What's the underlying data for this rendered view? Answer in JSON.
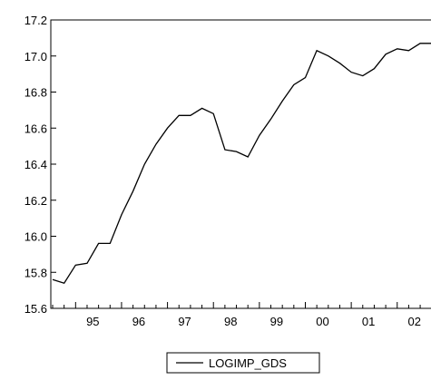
{
  "chart_data": {
    "type": "line",
    "title": "",
    "xlabel": "",
    "ylabel": "",
    "ylim": [
      15.6,
      17.2
    ],
    "yticks": [
      "15.6",
      "15.8",
      "16.0",
      "16.2",
      "16.4",
      "16.6",
      "16.8",
      "17.0",
      "17.2"
    ],
    "xtick_labels": [
      "95",
      "96",
      "97",
      "98",
      "99",
      "00",
      "01",
      "02"
    ],
    "x_start": "1994Q3",
    "x_end": "2002Q4",
    "frequency": "quarterly",
    "grid": false,
    "legend_position": "bottom-center",
    "series": [
      {
        "name": "LOGIMP_GDS",
        "color": "#000000",
        "x": [
          "1994Q3",
          "1994Q4",
          "1995Q1",
          "1995Q2",
          "1995Q3",
          "1995Q4",
          "1996Q1",
          "1996Q2",
          "1996Q3",
          "1996Q4",
          "1997Q1",
          "1997Q2",
          "1997Q3",
          "1997Q4",
          "1998Q1",
          "1998Q2",
          "1998Q3",
          "1998Q4",
          "1999Q1",
          "1999Q2",
          "1999Q3",
          "1999Q4",
          "2000Q1",
          "2000Q2",
          "2000Q3",
          "2000Q4",
          "2001Q1",
          "2001Q2",
          "2001Q3",
          "2001Q4",
          "2002Q1",
          "2002Q2",
          "2002Q3",
          "2002Q4"
        ],
        "values": [
          15.76,
          15.74,
          15.84,
          15.85,
          15.96,
          15.96,
          16.12,
          16.25,
          16.4,
          16.51,
          16.6,
          16.67,
          16.67,
          16.71,
          16.68,
          16.48,
          16.47,
          16.44,
          16.56,
          16.65,
          16.75,
          16.84,
          16.88,
          17.03,
          17.0,
          16.96,
          16.91,
          16.89,
          16.93,
          17.01,
          17.04,
          17.03,
          17.07,
          17.07
        ]
      }
    ]
  }
}
